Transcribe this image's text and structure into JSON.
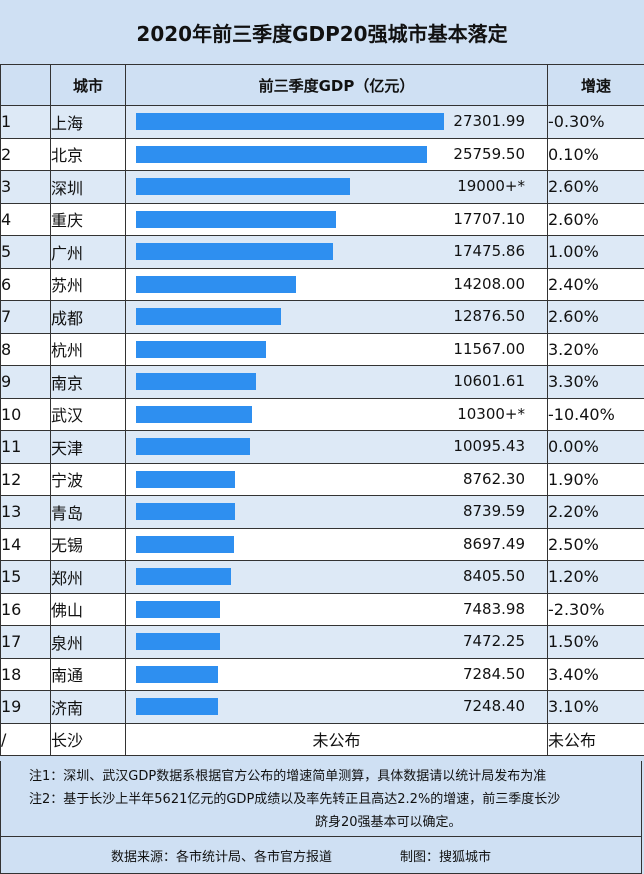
{
  "title": "2020年前三季度GDP20强城市基本落定",
  "headers": {
    "rank": "",
    "city": "城市",
    "gdp": "前三季度GDP（亿元）",
    "growth": "增速"
  },
  "chart_data": {
    "type": "bar",
    "title": "2020年前三季度GDP20强城市基本落定",
    "categories": [
      "上海",
      "北京",
      "深圳",
      "重庆",
      "广州",
      "苏州",
      "成都",
      "杭州",
      "南京",
      "武汉",
      "天津",
      "宁波",
      "青岛",
      "无锡",
      "郑州",
      "佛山",
      "泉州",
      "南通",
      "济南"
    ],
    "values": [
      27301.99,
      25759.5,
      19000,
      17707.1,
      17475.86,
      14208.0,
      12876.5,
      11567.0,
      10601.61,
      10300,
      10095.43,
      8762.3,
      8739.59,
      8697.49,
      8405.5,
      7483.98,
      7472.25,
      7284.5,
      7248.4
    ],
    "ylabel": "前三季度GDP（亿元）",
    "xlim": [
      0,
      30000
    ]
  },
  "rows": [
    {
      "rank": "1",
      "city": "上海",
      "gdp_label": "27301.99",
      "growth": "-0.30%"
    },
    {
      "rank": "2",
      "city": "北京",
      "gdp_label": "25759.50",
      "growth": "0.10%"
    },
    {
      "rank": "3",
      "city": "深圳",
      "gdp_label": "19000+*",
      "growth": "2.60%"
    },
    {
      "rank": "4",
      "city": "重庆",
      "gdp_label": "17707.10",
      "growth": "2.60%"
    },
    {
      "rank": "5",
      "city": "广州",
      "gdp_label": "17475.86",
      "growth": "1.00%"
    },
    {
      "rank": "6",
      "city": "苏州",
      "gdp_label": "14208.00",
      "growth": "2.40%"
    },
    {
      "rank": "7",
      "city": "成都",
      "gdp_label": "12876.50",
      "growth": "2.60%"
    },
    {
      "rank": "8",
      "city": "杭州",
      "gdp_label": "11567.00",
      "growth": "3.20%"
    },
    {
      "rank": "9",
      "city": "南京",
      "gdp_label": "10601.61",
      "growth": "3.30%"
    },
    {
      "rank": "10",
      "city": "武汉",
      "gdp_label": "10300+*",
      "growth": "-10.40%"
    },
    {
      "rank": "11",
      "city": "天津",
      "gdp_label": "10095.43",
      "growth": "0.00%"
    },
    {
      "rank": "12",
      "city": "宁波",
      "gdp_label": "8762.30",
      "growth": "1.90%"
    },
    {
      "rank": "13",
      "city": "青岛",
      "gdp_label": "8739.59",
      "growth": "2.20%"
    },
    {
      "rank": "14",
      "city": "无锡",
      "gdp_label": "8697.49",
      "growth": "2.50%"
    },
    {
      "rank": "15",
      "city": "郑州",
      "gdp_label": "8405.50",
      "growth": "1.20%"
    },
    {
      "rank": "16",
      "city": "佛山",
      "gdp_label": "7483.98",
      "growth": "-2.30%"
    },
    {
      "rank": "17",
      "city": "泉州",
      "gdp_label": "7472.25",
      "growth": "1.50%"
    },
    {
      "rank": "18",
      "city": "南通",
      "gdp_label": "7284.50",
      "growth": "3.40%"
    },
    {
      "rank": "19",
      "city": "济南",
      "gdp_label": "7248.40",
      "growth": "3.10%"
    }
  ],
  "last_row": {
    "rank": "/",
    "city": "长沙",
    "gdp": "未公布",
    "growth": "未公布"
  },
  "notes": {
    "note1": "注1：深圳、武汉GDP数据系根据官方公布的增速简单测算，具体数据请以统计局发布为准",
    "note2": "注2：基于长沙上半年5621亿元的GDP成绩以及率先转正且高达2.2%的增速，前三季度长沙",
    "note3": "跻身20强基本可以确定。"
  },
  "footer": {
    "source": "数据来源：各市统计局、各市官方报道",
    "maker": "制图：搜狐城市"
  },
  "colors": {
    "bar": "#2e8ff0",
    "background": "#cfe0f3",
    "row_alt": "#dde9f6"
  }
}
